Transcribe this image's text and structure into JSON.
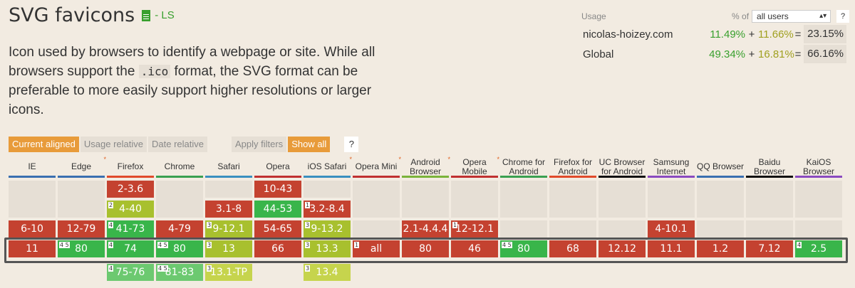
{
  "feature": {
    "title": "SVG favicons",
    "status": "- LS",
    "description_pre": "Icon used by browsers to identify a webpage or site. While all browsers support the ",
    "description_code": ".ico",
    "description_post": " format, the SVG format can be preferable to more easily support higher resolutions or larger icons."
  },
  "usage": {
    "label": "Usage",
    "pct_of": "% of",
    "select_value": "all users",
    "help": "?",
    "rows": [
      {
        "name": "nicolas-hoizey.com",
        "a": "11.49%",
        "plus": "+",
        "b": "11.66%",
        "eq": "=",
        "total": "23.15%"
      },
      {
        "name": "Global",
        "a": "49.34%",
        "plus": "+",
        "b": "16.81%",
        "eq": "=",
        "total": "66.16%"
      }
    ]
  },
  "filters": {
    "current_aligned": "Current aligned",
    "usage_relative": "Usage relative",
    "date_relative": "Date relative",
    "apply_filters": "Apply filters",
    "show_all": "Show all",
    "help": "?"
  },
  "colors": {
    "red": "#c44230",
    "green": "#39b54a",
    "lightgreen": "#6cc970",
    "olive": "#a8c02e",
    "lightolive": "#c6d44d",
    "blank": "#e6dfd5"
  },
  "browsers": [
    {
      "name": "IE",
      "line": "#3a6fb0",
      "note": "",
      "cells": [
        {
          "v": "6-10",
          "c": "red",
          "row": 2
        },
        {
          "v": "11",
          "c": "red",
          "row": 3
        }
      ]
    },
    {
      "name": "Edge",
      "line": "#3a6fb0",
      "note": "*",
      "cells": [
        {
          "v": "12-79",
          "c": "red",
          "row": 2
        },
        {
          "v": "80",
          "c": "green",
          "row": 3,
          "sup": "4 5"
        }
      ]
    },
    {
      "name": "Firefox",
      "line": "#e04a2a",
      "note": "",
      "cells": [
        {
          "v": "2-3.6",
          "c": "red",
          "row": 0
        },
        {
          "v": "4-40",
          "c": "olive",
          "row": 1,
          "sup": "2"
        },
        {
          "v": "41-73",
          "c": "green",
          "row": 2,
          "sup": "4"
        },
        {
          "v": "74",
          "c": "green",
          "row": 3,
          "sup": "4"
        },
        {
          "v": "75-76",
          "c": "lightgreen",
          "row": 4,
          "sup": "4"
        }
      ]
    },
    {
      "name": "Chrome",
      "line": "#3aa050",
      "note": "",
      "cells": [
        {
          "v": "4-79",
          "c": "red",
          "row": 2
        },
        {
          "v": "80",
          "c": "green",
          "row": 3,
          "sup": "4 5"
        },
        {
          "v": "81-83",
          "c": "lightgreen",
          "row": 4,
          "sup": "4 5"
        }
      ]
    },
    {
      "name": "Safari",
      "line": "#3a8fc0",
      "note": "",
      "cells": [
        {
          "v": "3.1-8",
          "c": "red",
          "row": 1
        },
        {
          "v": "9-12.1",
          "c": "olive",
          "row": 2,
          "sup": "3"
        },
        {
          "v": "13",
          "c": "olive",
          "row": 3,
          "sup": "3"
        },
        {
          "v": "13.1-TP",
          "c": "lightolive",
          "row": 4,
          "sup": "3"
        }
      ]
    },
    {
      "name": "Opera",
      "line": "#c03030",
      "note": "",
      "cells": [
        {
          "v": "10-43",
          "c": "red",
          "row": 0
        },
        {
          "v": "44-53",
          "c": "green",
          "row": 1
        },
        {
          "v": "54-65",
          "c": "red",
          "row": 2
        },
        {
          "v": "66",
          "c": "red",
          "row": 3
        }
      ]
    },
    {
      "name": "iOS Safari",
      "line": "#3a8fc0",
      "note": "*",
      "cells": [
        {
          "v": "3.2-8.4",
          "c": "red",
          "row": 1,
          "sup": "1"
        },
        {
          "v": "9-13.2",
          "c": "olive",
          "row": 2,
          "sup": "3"
        },
        {
          "v": "13.3",
          "c": "olive",
          "row": 3,
          "sup": "3"
        },
        {
          "v": "13.4",
          "c": "lightolive",
          "row": 4,
          "sup": "3"
        }
      ]
    },
    {
      "name": "Opera Mini",
      "line": "#c03030",
      "note": "*",
      "cells": [
        {
          "v": "all",
          "c": "red",
          "row": 3,
          "sup": "1"
        }
      ]
    },
    {
      "name": "Android Browser",
      "line": "#7ab33a",
      "note": "*",
      "cells": [
        {
          "v": "2.1-4.4.4",
          "c": "red",
          "row": 2
        },
        {
          "v": "80",
          "c": "red",
          "row": 3
        }
      ]
    },
    {
      "name": "Opera Mobile",
      "line": "#c03030",
      "note": "*",
      "cells": [
        {
          "v": "12-12.1",
          "c": "red",
          "row": 2,
          "sup": "1"
        },
        {
          "v": "46",
          "c": "red",
          "row": 3
        }
      ]
    },
    {
      "name": "Chrome for Android",
      "line": "#3aa050",
      "note": "",
      "cells": [
        {
          "v": "80",
          "c": "green",
          "row": 3,
          "sup": "4 5"
        }
      ]
    },
    {
      "name": "Firefox for Android",
      "line": "#e04a2a",
      "note": "",
      "cells": [
        {
          "v": "68",
          "c": "red",
          "row": 3
        }
      ]
    },
    {
      "name": "UC Browser for Android",
      "line": "#111111",
      "note": "",
      "cells": [
        {
          "v": "12.12",
          "c": "red",
          "row": 3
        }
      ]
    },
    {
      "name": "Samsung Internet",
      "line": "#8a4ac0",
      "note": "",
      "cells": [
        {
          "v": "4-10.1",
          "c": "red",
          "row": 2
        },
        {
          "v": "11.1",
          "c": "red",
          "row": 3
        }
      ]
    },
    {
      "name": "QQ Browser",
      "line": "#3a6fb0",
      "note": "",
      "cells": [
        {
          "v": "1.2",
          "c": "red",
          "row": 3
        }
      ]
    },
    {
      "name": "Baidu Browser",
      "line": "#111111",
      "note": "",
      "cells": [
        {
          "v": "7.12",
          "c": "red",
          "row": 3
        }
      ]
    },
    {
      "name": "KaiOS Browser",
      "line": "#8a4ac0",
      "note": "",
      "cells": [
        {
          "v": "2.5",
          "c": "green",
          "row": 3,
          "sup": "4"
        }
      ]
    }
  ]
}
